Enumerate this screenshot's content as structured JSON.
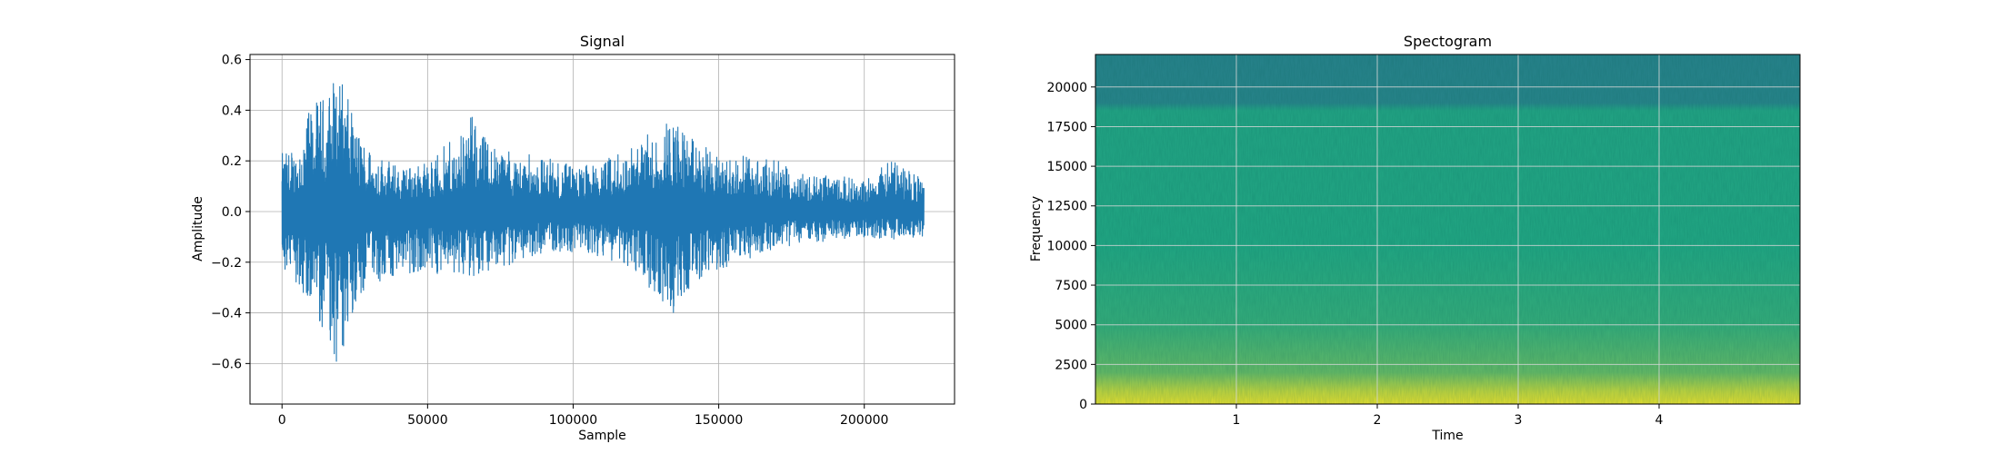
{
  "chart_data": [
    {
      "type": "line",
      "title": "Signal",
      "xlabel": "Sample",
      "ylabel": "Amplitude",
      "xlim": [
        -11000,
        231000
      ],
      "ylim": [
        -0.76,
        0.62
      ],
      "grid": true,
      "x_ticks": [
        0,
        50000,
        100000,
        150000,
        200000
      ],
      "x_tick_labels": [
        "0",
        "50000",
        "100000",
        "150000",
        "200000"
      ],
      "y_ticks": [
        -0.6,
        -0.4,
        -0.2,
        0.0,
        0.2,
        0.4,
        0.6
      ],
      "y_tick_labels": [
        "−0.6",
        "−0.4",
        "−0.2",
        "0.0",
        "0.2",
        "0.4",
        "0.6"
      ],
      "series": [
        {
          "color": "#1f77b4",
          "x": [
            0,
            5000,
            10000,
            15000,
            17500,
            20000,
            25000,
            30000,
            40000,
            50000,
            60000,
            65000,
            70000,
            80000,
            90000,
            100000,
            110000,
            120000,
            130000,
            133000,
            140000,
            150000,
            160000,
            170000,
            180000,
            190000,
            200000,
            210000,
            220500
          ],
          "upper": [
            0.23,
            0.26,
            0.42,
            0.46,
            0.54,
            0.55,
            0.35,
            0.26,
            0.18,
            0.2,
            0.3,
            0.38,
            0.3,
            0.23,
            0.22,
            0.18,
            0.2,
            0.26,
            0.34,
            0.4,
            0.3,
            0.22,
            0.22,
            0.2,
            0.15,
            0.14,
            0.13,
            0.21,
            0.12
          ],
          "lower": [
            -0.26,
            -0.28,
            -0.4,
            -0.48,
            -0.58,
            -0.7,
            -0.37,
            -0.3,
            -0.26,
            -0.25,
            -0.24,
            -0.27,
            -0.26,
            -0.2,
            -0.16,
            -0.16,
            -0.18,
            -0.22,
            -0.36,
            -0.43,
            -0.3,
            -0.24,
            -0.19,
            -0.14,
            -0.13,
            -0.11,
            -0.1,
            -0.11,
            -0.1
          ]
        }
      ]
    },
    {
      "type": "heatmap",
      "title": "Spectogram",
      "xlabel": "Time",
      "ylabel": "Frequency",
      "xlim": [
        0,
        5
      ],
      "ylim": [
        0,
        22050
      ],
      "grid": true,
      "x_ticks": [
        1,
        2,
        3,
        4
      ],
      "x_tick_labels": [
        "1",
        "2",
        "3",
        "4"
      ],
      "y_ticks": [
        0,
        2500,
        5000,
        7500,
        10000,
        12500,
        15000,
        17500,
        20000
      ],
      "y_tick_labels": [
        "0",
        "2500",
        "5000",
        "7500",
        "10000",
        "12500",
        "15000",
        "17500",
        "20000"
      ],
      "colors": {
        "low": "#2a788e",
        "mid": "#22a884",
        "high": "#fde725"
      },
      "band_levels": [
        {
          "f": 0,
          "level": 0.95
        },
        {
          "f": 800,
          "level": 0.85
        },
        {
          "f": 2000,
          "level": 0.62
        },
        {
          "f": 5000,
          "level": 0.5
        },
        {
          "f": 10000,
          "level": 0.45
        },
        {
          "f": 18500,
          "level": 0.42
        },
        {
          "f": 19000,
          "level": 0.12
        },
        {
          "f": 22050,
          "level": 0.1
        }
      ]
    }
  ]
}
